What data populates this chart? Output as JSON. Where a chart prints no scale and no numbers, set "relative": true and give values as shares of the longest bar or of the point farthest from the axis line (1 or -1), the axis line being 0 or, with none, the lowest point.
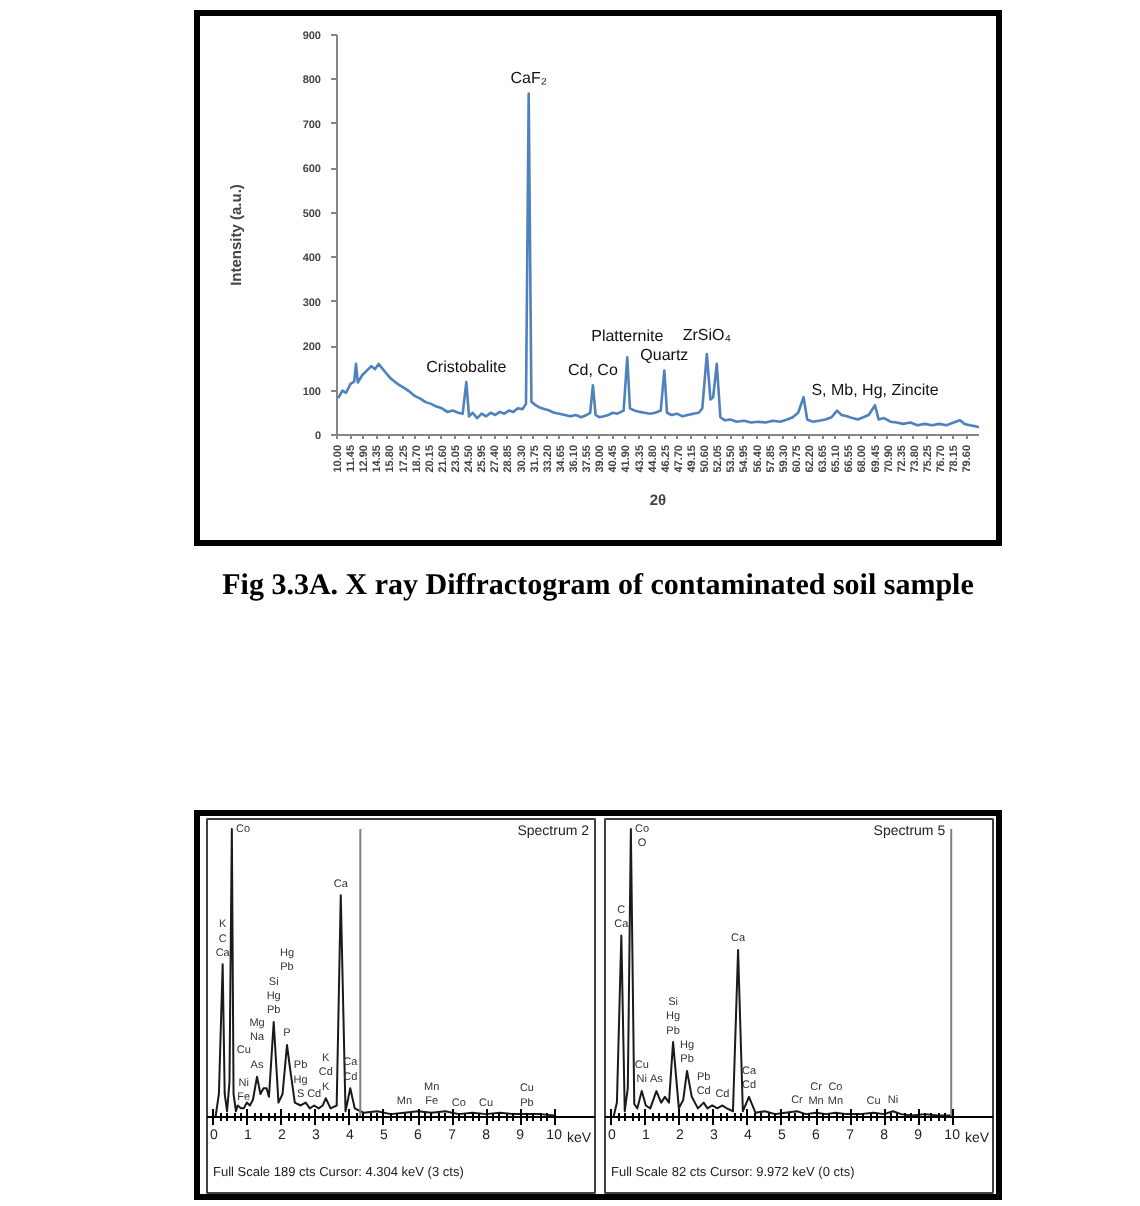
{
  "chart_data": [
    {
      "type": "line",
      "xlabel": "2θ",
      "ylabel": "Intensity (a.u.)",
      "xlim": [
        10,
        81
      ],
      "ylim": [
        0,
        900
      ],
      "xticks": [
        {
          "value": 10,
          "label": "10.00"
        },
        {
          "value": 11.45,
          "label": "11.45"
        },
        {
          "value": 12.9,
          "label": "12.90"
        },
        {
          "value": 14.35,
          "label": "14.35"
        },
        {
          "value": 15.8,
          "label": "15.80"
        },
        {
          "value": 17.25,
          "label": "17.25"
        },
        {
          "value": 18.7,
          "label": "18.70"
        },
        {
          "value": 20.15,
          "label": "20.15"
        },
        {
          "value": 21.6,
          "label": "21.60"
        },
        {
          "value": 23.05,
          "label": "23.05"
        },
        {
          "value": 24.5,
          "label": "24.50"
        },
        {
          "value": 25.95,
          "label": "25.95"
        },
        {
          "value": 27.4,
          "label": "27.40"
        },
        {
          "value": 28.85,
          "label": "28.85"
        },
        {
          "value": 30.3,
          "label": "30.30"
        },
        {
          "value": 31.75,
          "label": "31.75"
        },
        {
          "value": 33.2,
          "label": "33.20"
        },
        {
          "value": 34.65,
          "label": "34.65"
        },
        {
          "value": 36.1,
          "label": "36.10"
        },
        {
          "value": 37.55,
          "label": "37.55"
        },
        {
          "value": 39,
          "label": "39.00"
        },
        {
          "value": 40.45,
          "label": "40.45"
        },
        {
          "value": 41.9,
          "label": "41.90"
        },
        {
          "value": 43.35,
          "label": "43.35"
        },
        {
          "value": 44.8,
          "label": "44.80"
        },
        {
          "value": 46.25,
          "label": "46.25"
        },
        {
          "value": 47.7,
          "label": "47.70"
        },
        {
          "value": 49.15,
          "label": "49.15"
        },
        {
          "value": 50.6,
          "label": "50.60"
        },
        {
          "value": 52.05,
          "label": "52.05"
        },
        {
          "value": 53.5,
          "label": "53.50"
        },
        {
          "value": 54.95,
          "label": "54.95"
        },
        {
          "value": 56.4,
          "label": "56.40"
        },
        {
          "value": 57.85,
          "label": "57.85"
        },
        {
          "value": 59.3,
          "label": "59.30"
        },
        {
          "value": 60.75,
          "label": "60.75"
        },
        {
          "value": 62.2,
          "label": "62.20"
        },
        {
          "value": 63.65,
          "label": "63.65"
        },
        {
          "value": 65.1,
          "label": "65.10"
        },
        {
          "value": 66.55,
          "label": "66.55"
        },
        {
          "value": 68,
          "label": "68.00"
        },
        {
          "value": 69.45,
          "label": "69.45"
        },
        {
          "value": 70.9,
          "label": "70.90"
        },
        {
          "value": 72.35,
          "label": "72.35"
        },
        {
          "value": 73.8,
          "label": "73.80"
        },
        {
          "value": 75.25,
          "label": "75.25"
        },
        {
          "value": 76.7,
          "label": "76.70"
        },
        {
          "value": 78.15,
          "label": "78.15"
        },
        {
          "value": 79.6,
          "label": "79.60"
        }
      ],
      "yticks": [
        0,
        100,
        200,
        300,
        400,
        500,
        600,
        700,
        800,
        900
      ],
      "series": [
        {
          "color": "#4f81bd",
          "x": [
            10.2,
            10.6,
            11.0,
            11.5,
            11.9,
            12.1,
            12.3,
            12.8,
            13.3,
            13.8,
            14.2,
            14.6,
            15.0,
            15.4,
            15.9,
            16.4,
            16.9,
            17.5,
            18.0,
            18.6,
            19.2,
            19.8,
            20.4,
            21.0,
            21.6,
            22.2,
            22.8,
            23.4,
            23.9,
            24.3,
            24.6,
            25.0,
            25.5,
            26.0,
            26.5,
            27.0,
            27.5,
            28.0,
            28.5,
            29.0,
            29.5,
            30.0,
            30.5,
            30.9,
            31.2,
            31.5,
            31.9,
            32.4,
            33.0,
            33.5,
            34.0,
            34.6,
            35.2,
            35.8,
            36.4,
            37.0,
            37.6,
            38.0,
            38.3,
            38.6,
            39.0,
            39.5,
            40.0,
            40.5,
            41.0,
            41.7,
            42.1,
            42.4,
            42.9,
            43.5,
            44.0,
            44.6,
            45.2,
            45.8,
            46.2,
            46.5,
            47.0,
            47.6,
            48.2,
            48.8,
            49.4,
            50.0,
            50.4,
            50.9,
            51.3,
            51.6,
            52.0,
            52.4,
            52.9,
            53.5,
            54.2,
            55.0,
            55.8,
            56.6,
            57.4,
            58.2,
            59.0,
            59.8,
            60.4,
            61.0,
            61.6,
            62.0,
            62.6,
            63.3,
            64.0,
            64.7,
            65.3,
            65.8,
            66.4,
            67.0,
            67.6,
            68.2,
            68.8,
            69.5,
            69.9,
            70.5,
            71.2,
            71.9,
            72.6,
            73.4,
            74.2,
            75.0,
            75.8,
            76.6,
            77.4,
            78.2,
            78.9,
            79.4,
            80.0,
            80.5,
            80.9
          ],
          "values": [
            85,
            100,
            95,
            115,
            120,
            160,
            118,
            135,
            145,
            155,
            148,
            160,
            150,
            140,
            128,
            120,
            112,
            105,
            98,
            88,
            82,
            74,
            70,
            64,
            60,
            52,
            55,
            50,
            48,
            119,
            42,
            50,
            38,
            48,
            42,
            50,
            45,
            52,
            48,
            55,
            52,
            60,
            58,
            70,
            768,
            75,
            68,
            62,
            58,
            55,
            50,
            48,
            45,
            42,
            45,
            40,
            45,
            50,
            112,
            45,
            40,
            42,
            45,
            50,
            48,
            55,
            175,
            60,
            55,
            52,
            50,
            48,
            50,
            55,
            145,
            50,
            45,
            48,
            42,
            45,
            48,
            50,
            60,
            182,
            80,
            85,
            160,
            40,
            33,
            35,
            30,
            32,
            28,
            30,
            28,
            32,
            30,
            35,
            40,
            50,
            85,
            35,
            30,
            32,
            35,
            40,
            55,
            45,
            42,
            38,
            35,
            40,
            45,
            67,
            35,
            38,
            30,
            28,
            25,
            28,
            22,
            25,
            22,
            25,
            22,
            28,
            33,
            25,
            22,
            20,
            18
          ]
        }
      ],
      "annotations": [
        "Fig 3.3A. X ray Diffractogram of contaminated soil sample",
        {
          "text": "CaF₂",
          "x": 31.2,
          "y": 768
        },
        {
          "text": "Cristobalite",
          "x": 24.3,
          "y": 119
        },
        {
          "text": "Cd, Co",
          "x": 38.3,
          "y": 112
        },
        {
          "text": "Quartz",
          "x": 46.2,
          "y": 145
        },
        {
          "text": "Platternite",
          "x": 42.1,
          "y": 175
        },
        {
          "text": "ZrSiO₄",
          "x": 50.9,
          "y": 182
        },
        {
          "text": "S, Mb, Hg, Zincite",
          "x": 69.5,
          "y": 67
        }
      ]
    },
    {
      "type": "line",
      "relative": true,
      "title": "Spectrum 2",
      "xlabel": "keV",
      "xlim": [
        -0.2,
        11.2
      ],
      "xticks": [
        0,
        1,
        2,
        3,
        4,
        5,
        6,
        7,
        8,
        9,
        10
      ],
      "tick_labels": "x",
      "series": [
        {
          "color": "#1a1a1a",
          "x": [
            0.05,
            0.15,
            0.26,
            0.32,
            0.39,
            0.46,
            0.53,
            0.58,
            0.65,
            0.7,
            0.8,
            0.88,
            0.97,
            1.06,
            1.15,
            1.27,
            1.37,
            1.46,
            1.55,
            1.62,
            1.76,
            1.9,
            2.02,
            2.15,
            2.25,
            2.38,
            2.55,
            2.7,
            2.82,
            2.95,
            3.08,
            3.2,
            3.29,
            3.43,
            3.61,
            3.73,
            3.87,
            4.01,
            4.14,
            4.4,
            4.8,
            5.2,
            5.6,
            6.0,
            6.4,
            6.8,
            7.2,
            7.6,
            8.0,
            8.4,
            8.8,
            9.2,
            9.6,
            10.0
          ],
          "values": [
            0.0,
            0.08,
            0.53,
            0.08,
            0.02,
            0.12,
            1.0,
            0.08,
            0.02,
            0.04,
            0.03,
            0.03,
            0.05,
            0.04,
            0.06,
            0.14,
            0.08,
            0.1,
            0.1,
            0.07,
            0.33,
            0.05,
            0.08,
            0.25,
            0.16,
            0.05,
            0.04,
            0.05,
            0.03,
            0.04,
            0.03,
            0.04,
            0.065,
            0.03,
            0.04,
            0.77,
            0.02,
            0.1,
            0.03,
            0.015,
            0.02,
            0.01,
            0.015,
            0.02,
            0.015,
            0.02,
            0.01,
            0.015,
            0.01,
            0.015,
            0.01,
            0.01,
            0.01,
            0.005
          ]
        }
      ],
      "ref_lines": [
        {
          "axis": "x",
          "value": 4.304,
          "color": "#808080"
        }
      ],
      "annotations": [
        "Full Scale 189 cts Cursor: 4.304 keV (3 cts)",
        {
          "text": "Ca",
          "x": 0.26,
          "y": 0.53
        },
        "C",
        "K",
        {
          "text": "Co",
          "x": 0.53,
          "y": 1.0
        },
        {
          "text": "Fe",
          "x": 0.88,
          "y": 0.03
        },
        "Ni",
        "Cu",
        {
          "text": "As",
          "x": 1.27,
          "y": 0.14
        },
        "Na",
        "Mg",
        {
          "text": "Pb",
          "x": 1.76,
          "y": 0.33
        },
        "Hg",
        "Si",
        {
          "text": "P",
          "x": 2.15,
          "y": 0.25
        },
        "Pb",
        "Hg",
        {
          "text": "S",
          "x": 2.55,
          "y": 0.04
        },
        "Hg",
        "Pb",
        {
          "text": "Cd",
          "x": 2.95,
          "y": 0.04
        },
        {
          "text": "K",
          "x": 3.29,
          "y": 0.065
        },
        "Cd",
        "K",
        {
          "text": "Ca",
          "x": 3.73,
          "y": 0.77
        },
        {
          "text": "Cd",
          "x": 4.01,
          "y": 0.1
        },
        "Ca",
        {
          "text": "Mn",
          "x": 5.6,
          "y": 0.015
        },
        {
          "text": "Fe",
          "x": 6.4,
          "y": 0.015
        },
        "Mn",
        {
          "text": "Co",
          "x": 7.2,
          "y": 0.01
        },
        {
          "text": "Cu",
          "x": 8.0,
          "y": 0.01
        },
        {
          "text": "Pb",
          "x": 9.2,
          "y": 0.01
        },
        "Cu"
      ]
    },
    {
      "type": "line",
      "relative": true,
      "title": "Spectrum 5",
      "xlabel": "keV",
      "xlim": [
        -0.2,
        11.2
      ],
      "xticks": [
        0,
        1,
        2,
        3,
        4,
        5,
        6,
        7,
        8,
        9,
        10
      ],
      "tick_labels": "x",
      "series": [
        {
          "color": "#1a1a1a",
          "x": [
            0.05,
            0.15,
            0.28,
            0.38,
            0.47,
            0.56,
            0.66,
            0.75,
            0.88,
            1.0,
            1.13,
            1.31,
            1.45,
            1.56,
            1.68,
            1.8,
            1.97,
            2.1,
            2.21,
            2.35,
            2.53,
            2.7,
            2.81,
            2.95,
            3.1,
            3.25,
            3.38,
            3.56,
            3.71,
            3.85,
            4.03,
            4.22,
            4.5,
            4.8,
            5.1,
            5.44,
            5.7,
            6.0,
            6.3,
            6.57,
            6.9,
            7.3,
            7.69,
            8.0,
            8.26,
            8.5,
            8.82,
            9.2,
            9.57,
            10.0
          ],
          "values": [
            0.0,
            0.05,
            0.63,
            0.02,
            0.1,
            1.0,
            0.045,
            0.03,
            0.09,
            0.04,
            0.03,
            0.09,
            0.05,
            0.07,
            0.05,
            0.26,
            0.03,
            0.06,
            0.16,
            0.07,
            0.03,
            0.05,
            0.03,
            0.04,
            0.03,
            0.04,
            0.03,
            0.02,
            0.58,
            0.02,
            0.07,
            0.015,
            0.02,
            0.01,
            0.015,
            0.02,
            0.01,
            0.015,
            0.01,
            0.015,
            0.01,
            0.01,
            0.015,
            0.01,
            0.02,
            0.01,
            0.005,
            0.01,
            0.005,
            0.005
          ]
        }
      ],
      "ref_lines": [
        {
          "axis": "x",
          "value": 9.972,
          "color": "#808080"
        }
      ],
      "annotations": [
        "Full Scale 82 cts Cursor: 9.972 keV (0 cts)",
        {
          "text": "Ca",
          "x": 0.28,
          "y": 0.63
        },
        "C",
        {
          "text": "Co",
          "x": 0.56,
          "y": 1.0
        },
        "O",
        {
          "text": "Ni",
          "x": 0.88,
          "y": 0.09
        },
        "Cu",
        {
          "text": "As",
          "x": 1.31,
          "y": 0.09
        },
        {
          "text": "Pb",
          "x": 1.8,
          "y": 0.26
        },
        "Hg",
        "Si",
        {
          "text": "Pb",
          "x": 2.21,
          "y": 0.16
        },
        "Hg",
        {
          "text": "Cd",
          "x": 2.7,
          "y": 0.05
        },
        "Pb",
        {
          "text": "Cd",
          "x": 3.25,
          "y": 0.04
        },
        {
          "text": "Ca",
          "x": 3.71,
          "y": 0.58
        },
        {
          "text": "Cd",
          "x": 4.03,
          "y": 0.07
        },
        "Ca",
        {
          "text": "Cr",
          "x": 5.44,
          "y": 0.02
        },
        {
          "text": "Mn",
          "x": 6.0,
          "y": 0.015
        },
        "Cr",
        {
          "text": "Mn",
          "x": 6.57,
          "y": 0.015
        },
        "Co",
        {
          "text": "Cu",
          "x": 7.69,
          "y": 0.015
        },
        {
          "text": "Ni",
          "x": 8.26,
          "y": 0.02
        }
      ]
    }
  ]
}
